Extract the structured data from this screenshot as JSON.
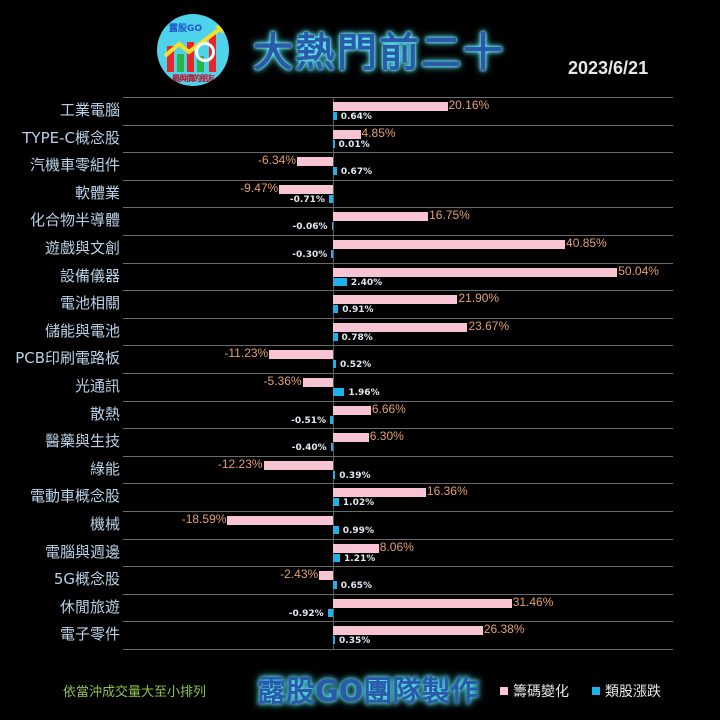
{
  "header": {
    "logo_text": "露股GO",
    "logo_caption": "最與價的朋友",
    "title": "大熱門前二十",
    "date": "2023/6/21"
  },
  "footer": {
    "sort_note": "依當沖成交量大至小排列",
    "brand": "露股GO團隊製作",
    "legend": [
      {
        "label": "籌碼變化",
        "color": "#f8c3d2"
      },
      {
        "label": "類股漲跌",
        "color": "#1bb3ea"
      }
    ]
  },
  "chart_data": {
    "type": "bar",
    "orientation": "horizontal",
    "title": "大熱門前二十",
    "subtitle": "2023/6/21",
    "categories": [
      "工業電腦",
      "TYPE-C概念股",
      "汽機車零組件",
      "軟體業",
      "化合物半導體",
      "遊戲與文創",
      "設備儀器",
      "電池相關",
      "儲能與電池",
      "PCB印刷電路板",
      "光通訊",
      "散熱",
      "醫藥與生技",
      "綠能",
      "電動車概念股",
      "機械",
      "電腦與週邊",
      "5G概念股",
      "休閒旅遊",
      "電子零件"
    ],
    "series": [
      {
        "name": "籌碼變化",
        "color": "#f8c3d2",
        "unit": "%",
        "values": [
          20.16,
          4.85,
          -6.34,
          -9.47,
          16.75,
          40.85,
          50.04,
          21.9,
          23.67,
          -11.23,
          -5.36,
          6.66,
          6.3,
          -12.23,
          16.36,
          -18.59,
          8.06,
          -2.43,
          31.46,
          26.38
        ],
        "labels": [
          "20.16%",
          "4.85%",
          "-6.34%",
          "-9.47%",
          "16.75%",
          "40.85%",
          "50.04%",
          "21.90%",
          "23.67%",
          "-11.23%",
          "-5.36%",
          "6.66%",
          "6.30%",
          "-12.23%",
          "16.36%",
          "-18.59%",
          "8.06%",
          "-2.43%",
          "31.46%",
          "26.38%"
        ]
      },
      {
        "name": "類股漲跌",
        "color": "#1bb3ea",
        "unit": "%",
        "values": [
          0.64,
          0.01,
          0.67,
          -0.71,
          -0.06,
          -0.3,
          2.4,
          0.91,
          0.78,
          0.52,
          1.96,
          -0.51,
          -0.4,
          0.39,
          1.02,
          0.99,
          1.21,
          0.65,
          -0.92,
          0.35
        ],
        "labels": [
          "0.64%",
          "0.01%",
          "0.67%",
          "-0.71%",
          "-0.06%",
          "-0.30%",
          "2.40%",
          "0.91%",
          "0.78%",
          "0.52%",
          "1.96%",
          "-0.51%",
          "-0.40%",
          "0.39%",
          "1.02%",
          "0.99%",
          "1.21%",
          "0.65%",
          "-0.92%",
          "0.35%"
        ]
      }
    ],
    "xlabel": "",
    "ylabel": "",
    "xlim": [
      -20,
      60
    ],
    "grid": true,
    "legend_position": "bottom",
    "note": "依當沖成交量大至小排列"
  }
}
